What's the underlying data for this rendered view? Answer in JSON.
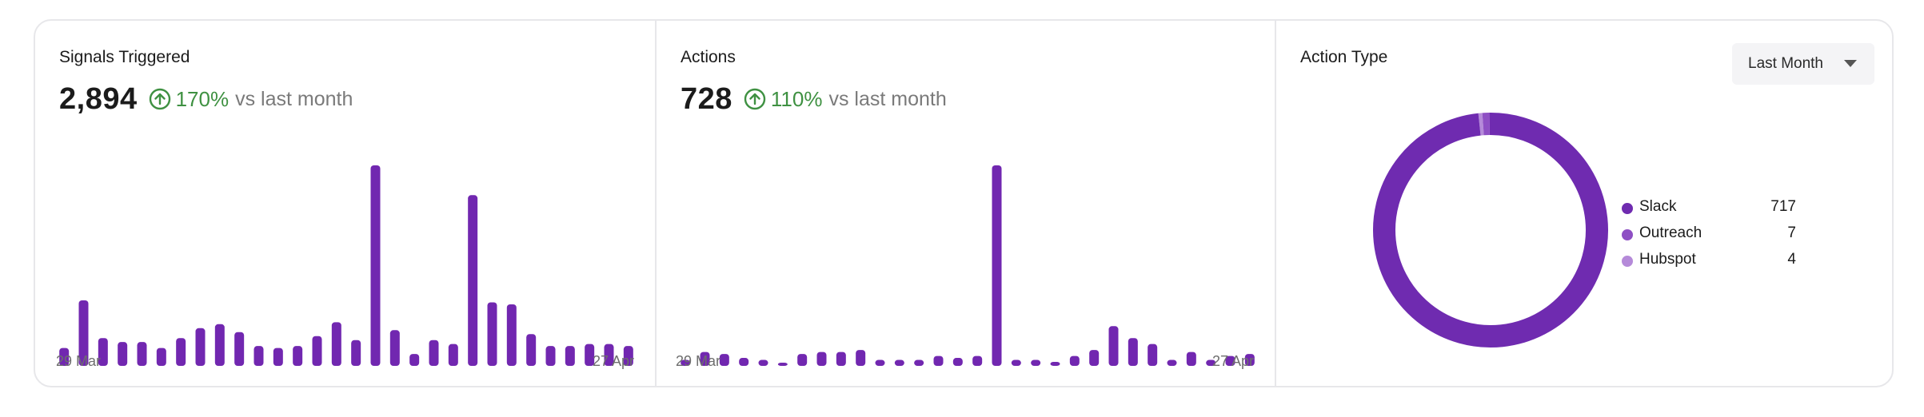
{
  "panels": {
    "signals": {
      "title": "Signals Triggered",
      "value": "2,894",
      "change": "170%",
      "change_suffix": "vs last month",
      "start_date": "29 Mar",
      "end_date": "27 Apr"
    },
    "actions": {
      "title": "Actions",
      "value": "728",
      "change": "110%",
      "change_suffix": "vs last month",
      "start_date": "29 Mar",
      "end_date": "27 Apr"
    },
    "action_type": {
      "title": "Action Type",
      "period_selector": "Last Month",
      "legend": [
        {
          "label": "Slack",
          "count": "717",
          "color": "#6f2bb0"
        },
        {
          "label": "Outreach",
          "count": "7",
          "color": "#8e4fc4"
        },
        {
          "label": "Hubspot",
          "count": "4",
          "color": "#b58ad9"
        }
      ]
    }
  },
  "colors": {
    "bar": "#7127b0",
    "positive": "#3f9142"
  },
  "chart_data": [
    {
      "type": "bar",
      "title": "Signals Triggered",
      "x_start": "29 Mar",
      "x_end": "27 Apr",
      "values": [
        9,
        33,
        14,
        12,
        12,
        9,
        14,
        19,
        21,
        17,
        10,
        9,
        10,
        15,
        22,
        13,
        101,
        18,
        6,
        13,
        11,
        86,
        32,
        31,
        16,
        10,
        10,
        11,
        11,
        10
      ],
      "ylim": [
        0,
        101
      ]
    },
    {
      "type": "bar",
      "title": "Actions",
      "x_start": "29 Mar",
      "x_end": "27 Apr",
      "values": [
        3,
        7,
        6,
        4,
        3,
        1,
        6,
        7,
        7,
        8,
        3,
        3,
        3,
        5,
        4,
        5,
        101,
        3,
        3,
        2,
        5,
        8,
        20,
        14,
        11,
        3,
        7,
        3,
        5,
        6
      ],
      "ylim": [
        0,
        101
      ]
    },
    {
      "type": "pie",
      "title": "Action Type",
      "categories": [
        "Slack",
        "Outreach",
        "Hubspot"
      ],
      "values": [
        717,
        7,
        4
      ]
    }
  ]
}
